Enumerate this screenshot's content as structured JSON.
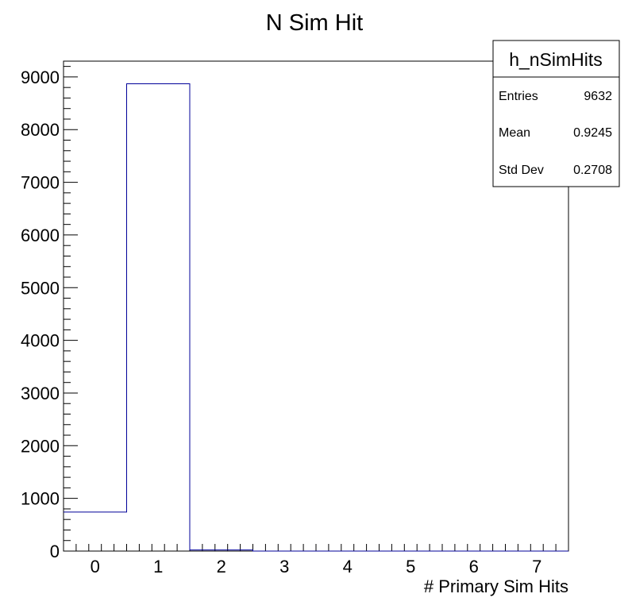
{
  "chart_data": {
    "type": "bar",
    "title": "N Sim Hit",
    "xlabel": "# Primary Sim Hits",
    "ylabel": "",
    "bin_edges": [
      -0.5,
      0.5,
      1.5,
      2.5,
      3.5,
      4.5,
      5.5,
      6.5,
      7.5
    ],
    "categories": [
      "0",
      "1",
      "2",
      "3",
      "4",
      "5",
      "6",
      "7"
    ],
    "values": [
      740,
      8870,
      20,
      0,
      0,
      0,
      0,
      0
    ],
    "xlim": [
      -0.5,
      7.5
    ],
    "ylim": [
      0,
      9300
    ],
    "x_ticks": [
      "0",
      "1",
      "2",
      "3",
      "4",
      "5",
      "6",
      "7"
    ],
    "y_ticks": [
      "0",
      "1000",
      "2000",
      "3000",
      "4000",
      "5000",
      "6000",
      "7000",
      "8000",
      "9000"
    ],
    "line_color": "#000099",
    "grid": false,
    "stats_box": {
      "name": "h_nSimHits",
      "rows": [
        {
          "label": "Entries",
          "value": "9632"
        },
        {
          "label": "Mean",
          "value": "0.9245"
        },
        {
          "label": "Std Dev",
          "value": "0.2708"
        }
      ],
      "placement": "top-right"
    }
  }
}
